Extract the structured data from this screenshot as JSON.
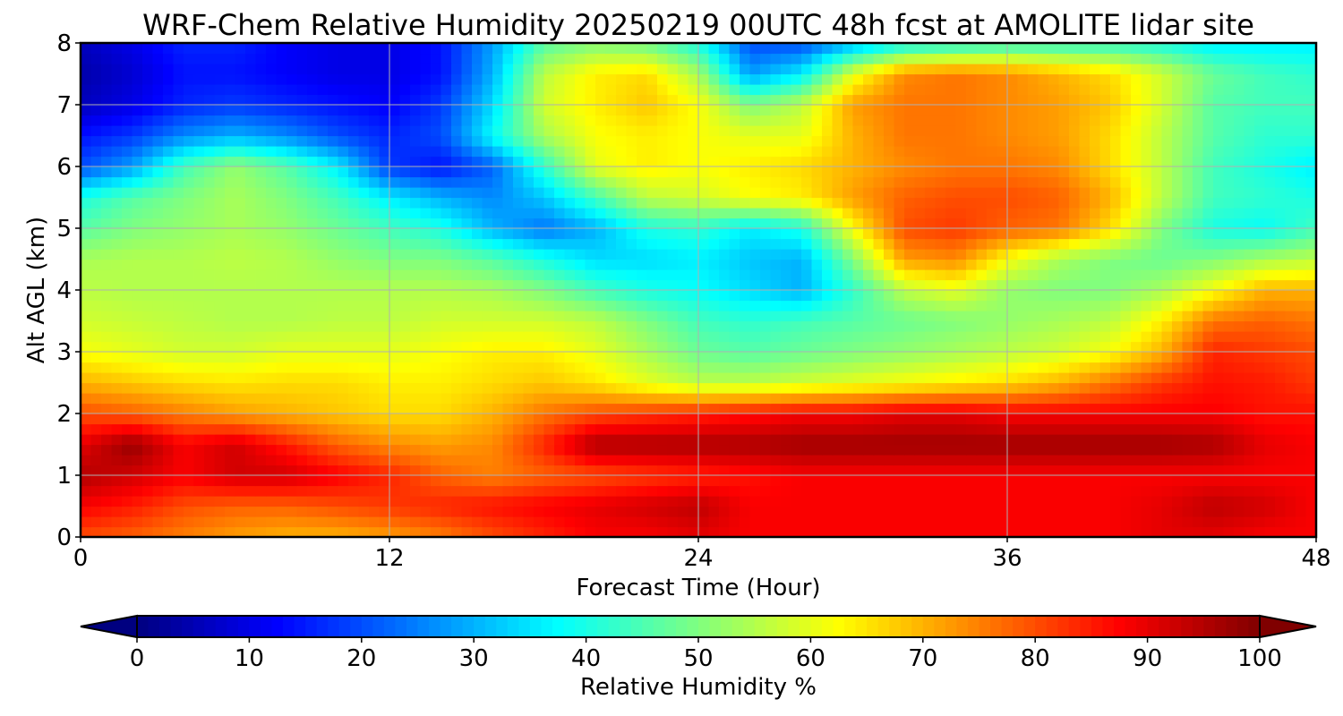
{
  "chart_data": {
    "type": "heatmap",
    "title": "WRF-Chem Relative Humidity 20250219 00UTC 48h fcst at AMOLITE lidar site",
    "xlabel": "Forecast Time (Hour)",
    "ylabel": "Alt AGL (km)",
    "xlim": [
      0,
      48
    ],
    "ylim": [
      0,
      8
    ],
    "xticks": [
      0,
      12,
      24,
      36,
      48
    ],
    "yticks": [
      0,
      1,
      2,
      3,
      4,
      5,
      6,
      7,
      8
    ],
    "grid": true,
    "x": [
      0,
      2,
      4,
      6,
      8,
      10,
      12,
      14,
      16,
      18,
      20,
      22,
      24,
      26,
      28,
      30,
      32,
      34,
      36,
      38,
      40,
      42,
      44,
      46,
      48
    ],
    "y": [
      0,
      0.5,
      1,
      1.5,
      2,
      2.5,
      3,
      3.5,
      4,
      4.5,
      5,
      5.5,
      6,
      6.5,
      7,
      7.5,
      8
    ],
    "values": [
      [
        80,
        78,
        75,
        72,
        70,
        70,
        72,
        75,
        80,
        84,
        88,
        88,
        90,
        88,
        88,
        88,
        88,
        88,
        88,
        88,
        88,
        90,
        90,
        88,
        88
      ],
      [
        88,
        85,
        80,
        78,
        78,
        80,
        82,
        84,
        86,
        88,
        90,
        92,
        94,
        88,
        88,
        88,
        88,
        88,
        88,
        88,
        88,
        90,
        94,
        92,
        88
      ],
      [
        95,
        92,
        88,
        92,
        92,
        88,
        84,
        78,
        75,
        78,
        80,
        82,
        84,
        86,
        88,
        88,
        88,
        88,
        88,
        88,
        88,
        88,
        88,
        88,
        88
      ],
      [
        90,
        98,
        88,
        92,
        85,
        78,
        74,
        72,
        74,
        84,
        96,
        96,
        96,
        96,
        97,
        97,
        97,
        97,
        97,
        97,
        97,
        97,
        96,
        90,
        88
      ],
      [
        80,
        78,
        75,
        72,
        70,
        68,
        66,
        66,
        70,
        76,
        80,
        82,
        84,
        86,
        88,
        88,
        90,
        90,
        88,
        88,
        88,
        88,
        88,
        86,
        86
      ],
      [
        70,
        68,
        66,
        65,
        66,
        66,
        64,
        64,
        66,
        68,
        65,
        60,
        56,
        56,
        58,
        60,
        62,
        64,
        66,
        70,
        76,
        82,
        86,
        85,
        82
      ],
      [
        62,
        60,
        58,
        58,
        60,
        60,
        60,
        62,
        64,
        64,
        60,
        54,
        48,
        46,
        48,
        50,
        52,
        54,
        56,
        58,
        62,
        70,
        84,
        82,
        80
      ],
      [
        58,
        57,
        56,
        55,
        55,
        56,
        56,
        58,
        58,
        58,
        56,
        50,
        44,
        42,
        44,
        46,
        48,
        50,
        52,
        54,
        56,
        64,
        76,
        78,
        76
      ],
      [
        56,
        55,
        55,
        55,
        55,
        55,
        55,
        55,
        54,
        50,
        44,
        40,
        38,
        34,
        30,
        42,
        56,
        60,
        52,
        50,
        50,
        54,
        62,
        70,
        70
      ],
      [
        54,
        55,
        55,
        56,
        55,
        52,
        50,
        50,
        46,
        40,
        34,
        34,
        36,
        32,
        30,
        50,
        72,
        74,
        62,
        54,
        50,
        48,
        50,
        54,
        56
      ],
      [
        46,
        50,
        52,
        54,
        52,
        48,
        44,
        40,
        30,
        24,
        30,
        40,
        42,
        36,
        40,
        62,
        80,
        82,
        78,
        76,
        66,
        50,
        40,
        38,
        44
      ],
      [
        40,
        46,
        50,
        54,
        50,
        44,
        36,
        30,
        26,
        32,
        44,
        56,
        58,
        62,
        64,
        72,
        78,
        80,
        80,
        78,
        70,
        56,
        44,
        42,
        40
      ],
      [
        20,
        28,
        44,
        52,
        46,
        36,
        18,
        14,
        22,
        42,
        60,
        64,
        62,
        64,
        66,
        70,
        74,
        76,
        76,
        74,
        66,
        56,
        44,
        40,
        36
      ],
      [
        14,
        18,
        26,
        30,
        26,
        20,
        16,
        20,
        38,
        54,
        62,
        64,
        62,
        60,
        60,
        70,
        76,
        76,
        74,
        72,
        66,
        56,
        46,
        42,
        42
      ],
      [
        6,
        10,
        16,
        18,
        16,
        14,
        12,
        18,
        34,
        58,
        64,
        68,
        62,
        50,
        56,
        72,
        76,
        76,
        74,
        72,
        68,
        58,
        46,
        44,
        44
      ],
      [
        4,
        8,
        14,
        14,
        12,
        10,
        10,
        14,
        30,
        56,
        64,
        66,
        54,
        28,
        36,
        60,
        74,
        76,
        74,
        70,
        66,
        58,
        48,
        44,
        42
      ],
      [
        6,
        10,
        16,
        16,
        12,
        10,
        10,
        14,
        28,
        46,
        50,
        48,
        40,
        20,
        20,
        30,
        38,
        40,
        42,
        42,
        42,
        40,
        36,
        36,
        36
      ]
    ],
    "colorbar": {
      "label": "Relative Humidity %",
      "min": 0,
      "max": 100,
      "ticks": [
        0,
        10,
        20,
        30,
        40,
        50,
        60,
        70,
        80,
        90,
        100
      ],
      "extend": "both",
      "colormap": "jet"
    }
  }
}
